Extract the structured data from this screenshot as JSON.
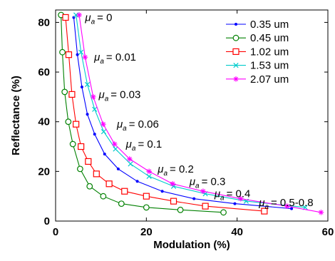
{
  "chart_data": {
    "type": "line",
    "xlabel": "Modulation (%)",
    "ylabel": "Reflectance (%)",
    "xlim": [
      0,
      60
    ],
    "ylim": [
      0,
      85
    ],
    "xticks": [
      0,
      20,
      40,
      60
    ],
    "yticks": [
      0,
      20,
      40,
      60,
      80
    ],
    "grid": false,
    "legend_position": "top-right",
    "series": [
      {
        "name": "0.35 um",
        "color": "#0000ff",
        "marker": "dot",
        "x": [
          4.0,
          4.8,
          5.8,
          7.0,
          8.6,
          10.8,
          13.8,
          18.0,
          23.5,
          30.5,
          39.5,
          52.0
        ],
        "y": [
          82,
          67,
          54,
          43,
          35,
          27,
          21,
          16,
          12,
          9,
          7,
          5
        ]
      },
      {
        "name": "0.45 um",
        "color": "#008000",
        "marker": "circle",
        "x": [
          1.2,
          1.5,
          2.0,
          2.8,
          3.8,
          5.4,
          7.5,
          10.5,
          14.5,
          20.0,
          27.5,
          37.0
        ],
        "y": [
          83,
          68,
          52,
          40,
          31,
          21,
          14,
          10,
          7,
          5.5,
          4.5,
          3.5
        ]
      },
      {
        "name": "1.02 um",
        "color": "#ff0000",
        "marker": "square",
        "x": [
          2.2,
          2.9,
          3.6,
          4.5,
          5.6,
          7.2,
          9.0,
          11.8,
          15.2,
          20.0,
          26.0,
          33.0,
          46.0
        ],
        "y": [
          82,
          67,
          51,
          39,
          30,
          24,
          19,
          15,
          12,
          10,
          8,
          6,
          4
        ]
      },
      {
        "name": "1.53 um",
        "color": "#00cccc",
        "marker": "x",
        "x": [
          4.5,
          5.6,
          7.0,
          8.6,
          10.6,
          13.2,
          16.5,
          20.6,
          26.0,
          33.0,
          42.0,
          55.0
        ],
        "y": [
          83,
          68,
          55,
          45,
          36,
          29,
          23,
          18,
          14,
          11,
          8,
          5.5
        ]
      },
      {
        "name": "2.07 um",
        "color": "#ff00ff",
        "marker": "star",
        "x": [
          5.2,
          6.5,
          8.3,
          10.5,
          13.0,
          16.3,
          20.6,
          25.8,
          32.5,
          40.8,
          51.0,
          58.5
        ],
        "y": [
          83,
          66,
          50,
          39,
          31,
          25,
          20,
          15,
          12,
          9,
          6,
          3.5
        ]
      }
    ],
    "annotations": [
      {
        "mu_symbol": "μ",
        "subscript": "a",
        "value": "= 0",
        "x": 6.5,
        "y": 82
      },
      {
        "mu_symbol": "μ",
        "subscript": "a",
        "value": "= 0.01",
        "x": 8.5,
        "y": 66
      },
      {
        "mu_symbol": "μ",
        "subscript": "a",
        "value": "= 0.03",
        "x": 9.5,
        "y": 51
      },
      {
        "mu_symbol": "μ",
        "subscript": "a",
        "value": "= 0.06",
        "x": 13.5,
        "y": 39
      },
      {
        "mu_symbol": "μ",
        "subscript": "a",
        "value": "= 0.1",
        "x": 15.5,
        "y": 31
      },
      {
        "mu_symbol": "μ",
        "subscript": "a",
        "value": "= 0.2",
        "x": 22.5,
        "y": 21
      },
      {
        "mu_symbol": "μ",
        "subscript": "a",
        "value": "= 0.3",
        "x": 29.5,
        "y": 16
      },
      {
        "mu_symbol": "μ",
        "subscript": "a",
        "value": "= 0.4",
        "x": 35.0,
        "y": 11
      },
      {
        "mu_symbol": "μ",
        "subscript": "a",
        "value": "= 0.5-0.8",
        "x": 44.8,
        "y": 7.5
      }
    ]
  }
}
